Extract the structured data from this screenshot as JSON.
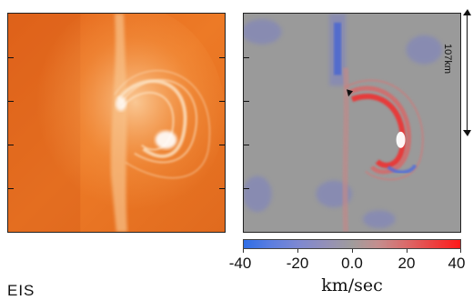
{
  "scale_bar": {
    "label": "107km"
  },
  "colorbar": {
    "tick_labels": [
      "-40",
      "-20",
      "0.0",
      "20",
      "40"
    ],
    "values": [
      -40,
      -20,
      0,
      20,
      40
    ],
    "unit": "km/sec",
    "colors": {
      "negative": "#2f6ee6",
      "zero": "#a09c9c",
      "positive": "#ff1a1a"
    }
  },
  "corner_label": "EIS"
}
